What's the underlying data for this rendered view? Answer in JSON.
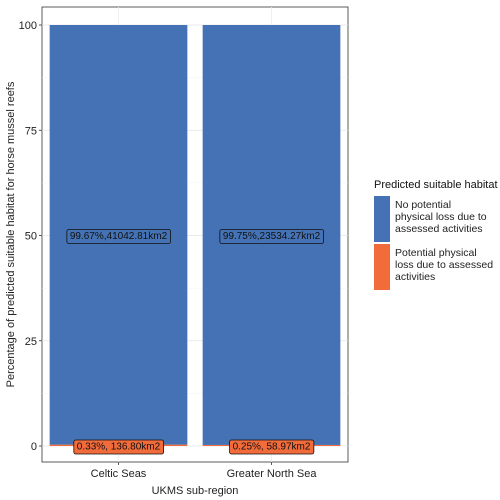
{
  "chart_data": {
    "type": "bar",
    "stacked": true,
    "xlabel": "UKMS sub-region",
    "ylabel": "Percentage of predicted suitable habitat for horse mussel reefs",
    "ylim": [
      0,
      100
    ],
    "yticks": [
      0,
      25,
      50,
      75,
      100
    ],
    "categories": [
      "Celtic Seas",
      "Greater North Sea"
    ],
    "series": [
      {
        "name": "Potential physical loss due to assessed activities",
        "color": "#F26B3A",
        "values": [
          0.33,
          0.25
        ],
        "labels": [
          "0.33%,  136.80km2",
          "0.25%,   58.97km2"
        ]
      },
      {
        "name": "No potential physical loss due to assessed activities",
        "color": "#4472B4",
        "values": [
          99.67,
          99.75
        ],
        "labels": [
          "99.67%,41042.81km2",
          "99.75%,23534.27km2"
        ]
      }
    ],
    "grid": true,
    "legend": {
      "title": "Predicted suitable habitat",
      "placement": "right",
      "entries": [
        "No potential physical loss due to assessed activities",
        "Potential physical loss due to assessed activities"
      ]
    }
  }
}
